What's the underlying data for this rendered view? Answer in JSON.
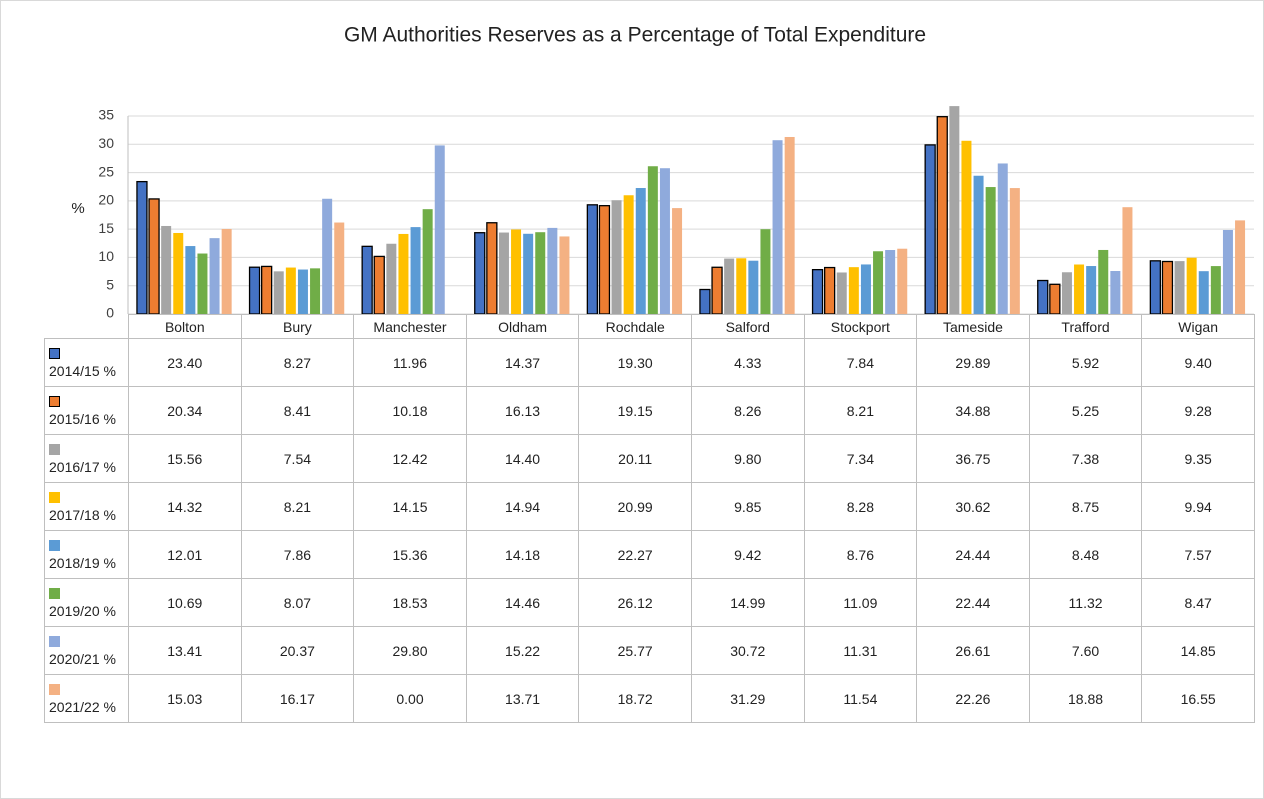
{
  "chart_data": {
    "type": "bar",
    "title": "GM Authorities Reserves as a Percentage of Total Expenditure",
    "y_label": "%",
    "categories": [
      "Bolton",
      "Bury",
      "Manchester",
      "Oldham",
      "Rochdale",
      "Salford",
      "Stockport",
      "Tameside",
      "Trafford",
      "Wigan"
    ],
    "ylim": [
      0,
      35
    ],
    "yticks": [
      0,
      5,
      10,
      15,
      20,
      25,
      30,
      35
    ],
    "grid": true,
    "series": [
      {
        "name": "2014/15 %",
        "color": "#4472c4",
        "values": [
          23.4,
          8.27,
          11.96,
          14.37,
          19.3,
          4.33,
          7.84,
          29.89,
          5.92,
          9.4
        ],
        "value_labels": [
          "23.40",
          "8.27",
          "11.96",
          "14.37",
          "19.30",
          "4.33",
          "7.84",
          "29.89",
          "5.92",
          "9.40"
        ]
      },
      {
        "name": "2015/16 %",
        "color": "#ed7d31",
        "values": [
          20.34,
          8.41,
          10.18,
          16.13,
          19.15,
          8.26,
          8.21,
          34.88,
          5.25,
          9.28
        ],
        "value_labels": [
          "20.34",
          "8.41",
          "10.18",
          "16.13",
          "19.15",
          "8.26",
          "8.21",
          "34.88",
          "5.25",
          "9.28"
        ]
      },
      {
        "name": "2016/17 %",
        "color": "#a5a5a5",
        "values": [
          15.56,
          7.54,
          12.42,
          14.4,
          20.11,
          9.8,
          7.34,
          36.75,
          7.38,
          9.35
        ],
        "value_labels": [
          "15.56",
          "7.54",
          "12.42",
          "14.40",
          "20.11",
          "9.80",
          "7.34",
          "36.75",
          "7.38",
          "9.35"
        ]
      },
      {
        "name": "2017/18 %",
        "color": "#ffc000",
        "values": [
          14.32,
          8.21,
          14.15,
          14.94,
          20.99,
          9.85,
          8.28,
          30.62,
          8.75,
          9.94
        ],
        "value_labels": [
          "14.32",
          "8.21",
          "14.15",
          "14.94",
          "20.99",
          "9.85",
          "8.28",
          "30.62",
          "8.75",
          "9.94"
        ]
      },
      {
        "name": "2018/19 %",
        "color": "#5b9bd5",
        "values": [
          12.01,
          7.86,
          15.36,
          14.18,
          22.27,
          9.42,
          8.76,
          24.44,
          8.48,
          7.57
        ],
        "value_labels": [
          "12.01",
          "7.86",
          "15.36",
          "14.18",
          "22.27",
          "9.42",
          "8.76",
          "24.44",
          "8.48",
          "7.57"
        ]
      },
      {
        "name": "2019/20 %",
        "color": "#70ad47",
        "values": [
          10.69,
          8.07,
          18.53,
          14.46,
          26.12,
          14.99,
          11.09,
          22.44,
          11.32,
          8.47
        ],
        "value_labels": [
          "10.69",
          "8.07",
          "18.53",
          "14.46",
          "26.12",
          "14.99",
          "11.09",
          "22.44",
          "11.32",
          "8.47"
        ]
      },
      {
        "name": "2020/21 %",
        "color": "#8faadc",
        "values": [
          13.41,
          20.37,
          29.8,
          15.22,
          25.77,
          30.72,
          11.31,
          26.61,
          7.6,
          14.85
        ],
        "value_labels": [
          "13.41",
          "20.37",
          "29.80",
          "15.22",
          "25.77",
          "30.72",
          "11.31",
          "26.61",
          "7.60",
          "14.85"
        ]
      },
      {
        "name": "2021/22 %",
        "color": "#f4b183",
        "values": [
          15.03,
          16.17,
          0,
          13.71,
          18.72,
          31.29,
          11.54,
          22.26,
          18.88,
          16.55
        ],
        "value_labels": [
          "15.03",
          "16.17",
          "0.00",
          "13.71",
          "18.72",
          "31.29",
          "11.54",
          "22.26",
          "18.88",
          "16.55"
        ]
      }
    ]
  }
}
